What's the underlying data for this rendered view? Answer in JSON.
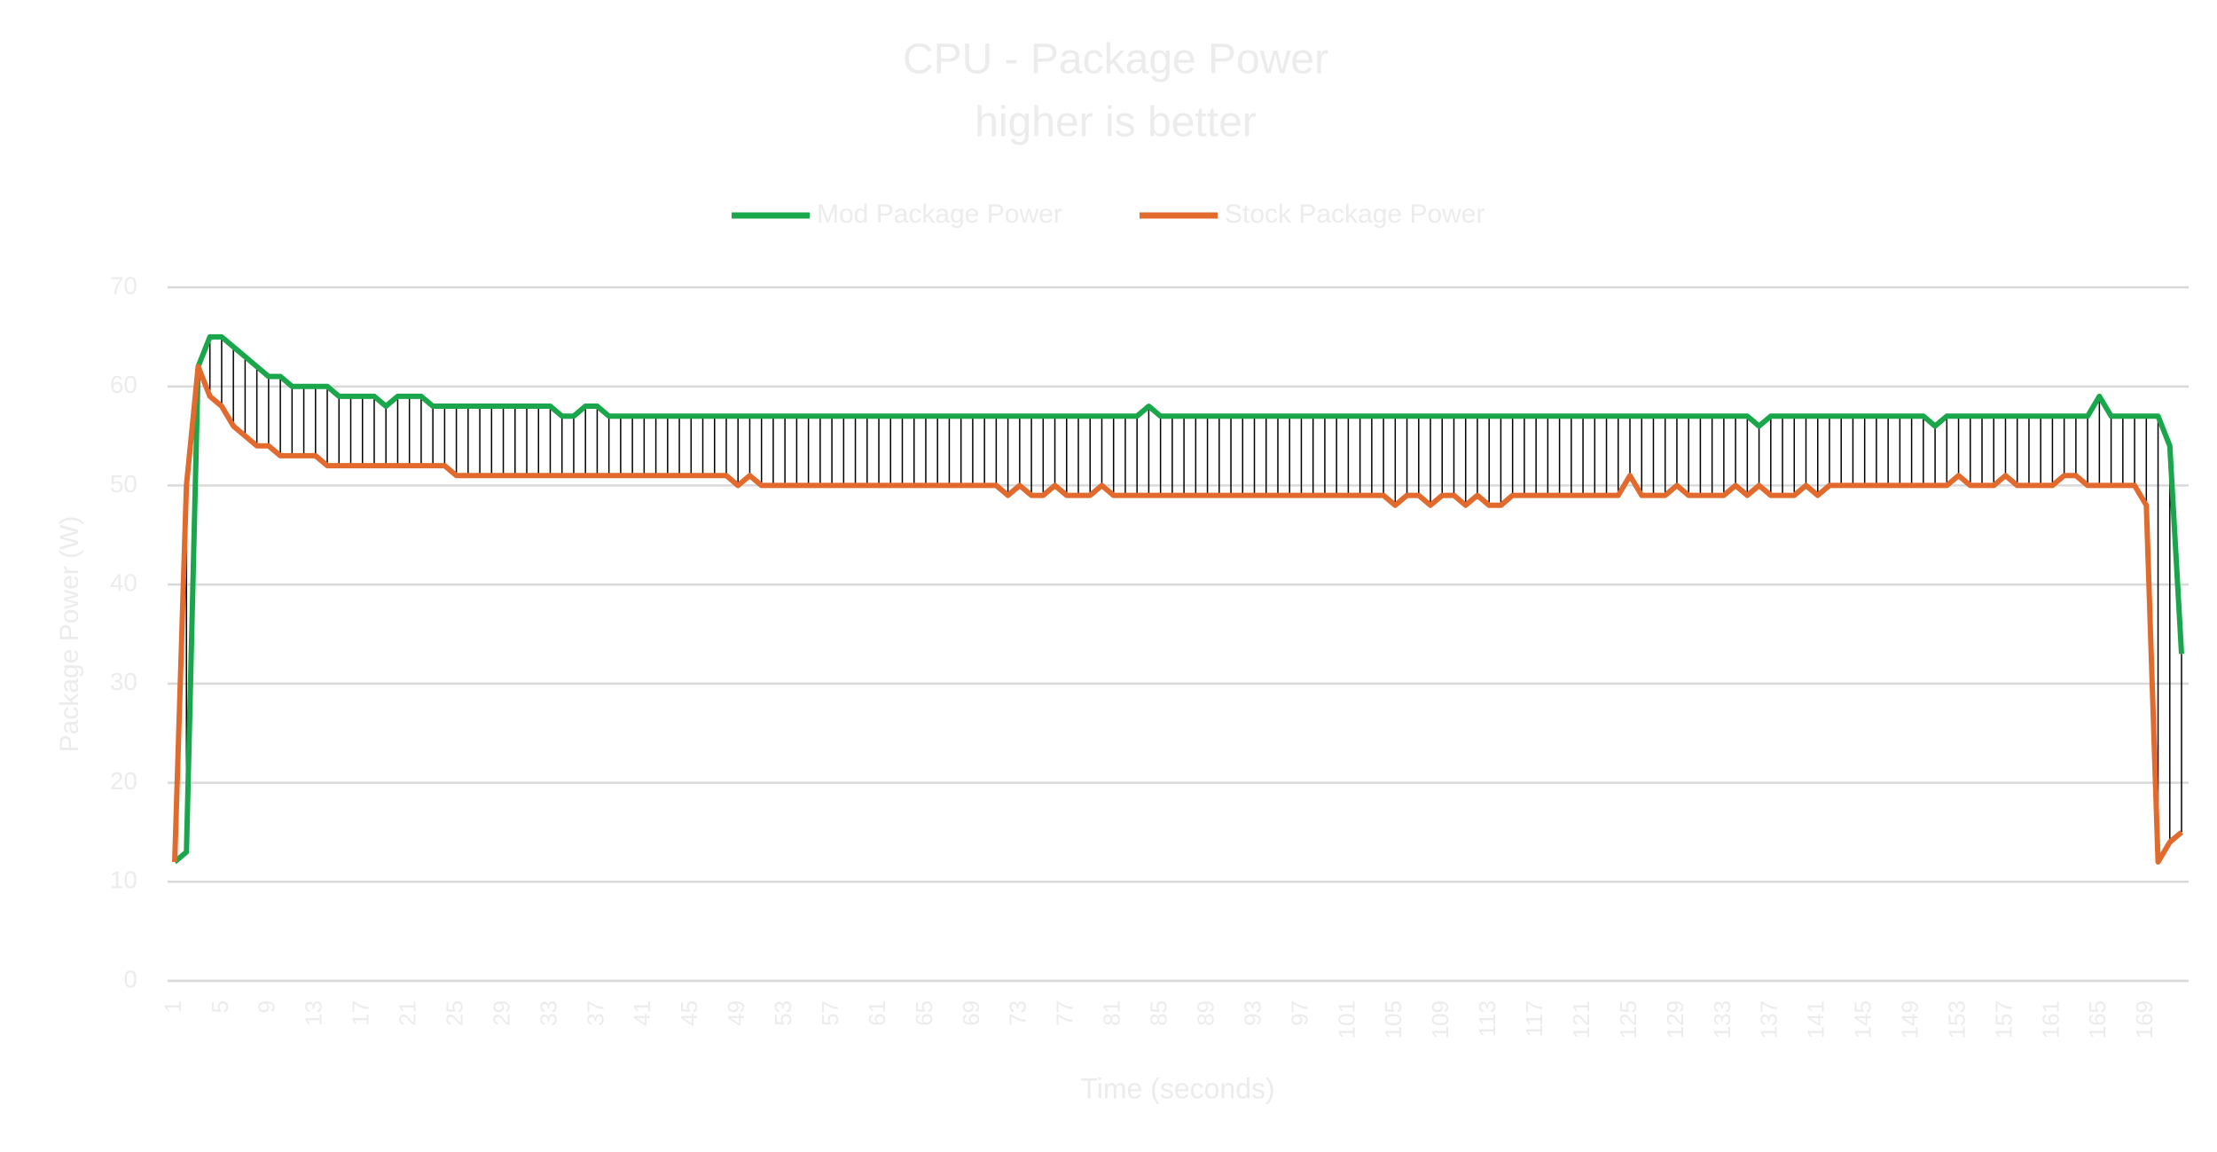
{
  "chart_data": {
    "type": "line",
    "title": "CPU - Package Power",
    "subtitle": "higher is better",
    "x_label": "Time (seconds)",
    "y_label": "Package Power (W)",
    "categories": [
      "1",
      null,
      null,
      null,
      "5",
      null,
      null,
      null,
      "9",
      null,
      null,
      null,
      "13",
      null,
      null,
      null,
      "17",
      null,
      null,
      null,
      "21",
      null,
      null,
      null,
      "25",
      null,
      null,
      null,
      "29",
      null,
      null,
      null,
      "33",
      null,
      null,
      null,
      "37",
      null,
      null,
      null,
      "41",
      null,
      null,
      null,
      "45",
      null,
      null,
      null,
      "49",
      null,
      null,
      null,
      "53",
      null,
      null,
      null,
      "57",
      null,
      null,
      null,
      "61",
      null,
      null,
      null,
      "65",
      null,
      null,
      null,
      "69",
      null,
      null,
      null,
      "73",
      null,
      null,
      null,
      "77",
      null,
      null,
      null,
      "81",
      null,
      null,
      null,
      "85",
      null,
      null,
      null,
      "89",
      null,
      null,
      null,
      "93",
      null,
      null,
      null,
      "97",
      null,
      null,
      null,
      "101",
      null,
      null,
      null,
      "105",
      null,
      null,
      null,
      "109",
      null,
      null,
      null,
      "113",
      null,
      null,
      null,
      "117",
      null,
      null,
      null,
      "121",
      null,
      null,
      null,
      "125",
      null,
      null,
      null,
      "129",
      null,
      null,
      null,
      "133",
      null,
      null,
      null,
      "137",
      null,
      null,
      null,
      "141",
      null,
      null,
      null,
      "145",
      null,
      null,
      null,
      "149",
      null,
      null,
      null,
      "153",
      null,
      null,
      null,
      "157",
      null,
      null,
      null,
      "161",
      null,
      null,
      null,
      "165",
      null,
      null,
      null,
      "169",
      null,
      null,
      null
    ],
    "series": [
      {
        "name": "Mod Package Power",
        "color": "#1aa64a",
        "values": [
          12,
          13,
          62,
          65,
          65,
          64,
          63,
          62,
          61,
          61,
          60,
          60,
          60,
          60,
          59,
          59,
          59,
          59,
          58,
          59,
          59,
          59,
          58,
          58,
          58,
          58,
          58,
          58,
          58,
          58,
          58,
          58,
          58,
          57,
          57,
          58,
          58,
          57,
          57,
          57,
          57,
          57,
          57,
          57,
          57,
          57,
          57,
          57,
          57,
          57,
          57,
          57,
          57,
          57,
          57,
          57,
          57,
          57,
          57,
          57,
          57,
          57,
          57,
          57,
          57,
          57,
          57,
          57,
          57,
          57,
          57,
          57,
          57,
          57,
          57,
          57,
          57,
          57,
          57,
          57,
          57,
          57,
          57,
          58,
          57,
          57,
          57,
          57,
          57,
          57,
          57,
          57,
          57,
          57,
          57,
          57,
          57,
          57,
          57,
          57,
          57,
          57,
          57,
          57,
          57,
          57,
          57,
          57,
          57,
          57,
          57,
          57,
          57,
          57,
          57,
          57,
          57,
          57,
          57,
          57,
          57,
          57,
          57,
          57,
          57,
          57,
          57,
          57,
          57,
          57,
          57,
          57,
          57,
          57,
          57,
          56,
          57,
          57,
          57,
          57,
          57,
          57,
          57,
          57,
          57,
          57,
          57,
          57,
          57,
          57,
          56,
          57,
          57,
          57,
          57,
          57,
          57,
          57,
          57,
          57,
          57,
          57,
          57,
          57,
          59,
          57,
          57,
          57,
          57,
          57,
          54,
          33
        ]
      },
      {
        "name": "Stock Package Power",
        "color": "#e26a2c",
        "values": [
          12,
          50,
          62,
          59,
          58,
          56,
          55,
          54,
          54,
          53,
          53,
          53,
          53,
          52,
          52,
          52,
          52,
          52,
          52,
          52,
          52,
          52,
          52,
          52,
          51,
          51,
          51,
          51,
          51,
          51,
          51,
          51,
          51,
          51,
          51,
          51,
          51,
          51,
          51,
          51,
          51,
          51,
          51,
          51,
          51,
          51,
          51,
          51,
          50,
          51,
          50,
          50,
          50,
          50,
          50,
          50,
          50,
          50,
          50,
          50,
          50,
          50,
          50,
          50,
          50,
          50,
          50,
          50,
          50,
          50,
          50,
          49,
          50,
          49,
          49,
          50,
          49,
          49,
          49,
          50,
          49,
          49,
          49,
          49,
          49,
          49,
          49,
          49,
          49,
          49,
          49,
          49,
          49,
          49,
          49,
          49,
          49,
          49,
          49,
          49,
          49,
          49,
          49,
          49,
          48,
          49,
          49,
          48,
          49,
          49,
          48,
          49,
          48,
          48,
          49,
          49,
          49,
          49,
          49,
          49,
          49,
          49,
          49,
          49,
          51,
          49,
          49,
          49,
          50,
          49,
          49,
          49,
          49,
          50,
          49,
          50,
          49,
          49,
          49,
          50,
          49,
          50,
          50,
          50,
          50,
          50,
          50,
          50,
          50,
          50,
          50,
          50,
          51,
          50,
          50,
          50,
          51,
          50,
          50,
          50,
          50,
          51,
          51,
          50,
          50,
          50,
          50,
          50,
          48,
          12,
          14,
          15
        ]
      }
    ],
    "ylim": [
      0,
      70
    ],
    "yticks": [
      0,
      10,
      20,
      30,
      40,
      50,
      60,
      70
    ],
    "grid": true,
    "drop_lines": true,
    "legend": "top"
  }
}
